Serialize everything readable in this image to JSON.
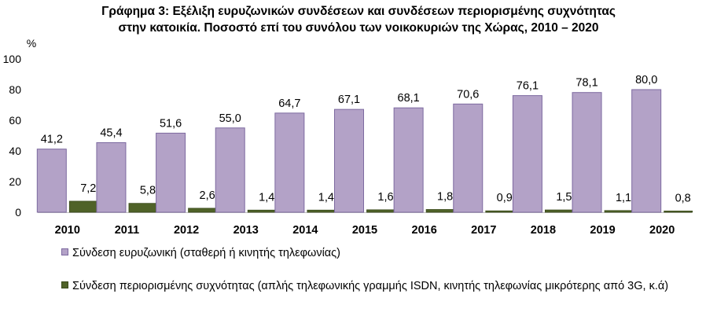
{
  "title_line1": "Γράφημα 3: Εξέλιξη ευρυζωνικών συνδέσεων και συνδέσεων περιορισμένης συχνότητας",
  "title_line2": "στην κατοικία. Ποσοστό επί του συνόλου των νοικοκυριών της Χώρας, 2010 – 2020",
  "legend": {
    "broadband": "Σύνδεση ευρυζωνική (σταθερή ή κινητής τηλεφωνίας)",
    "narrowband": "Σύνδεση περιορισμένης συχνότητας (απλής τηλεφωνικής γραμμής ISDN, κινητής τηλεφωνίας μικρότερης από 3G, κ.ά)"
  },
  "colors": {
    "broadband": "#b3a2c7",
    "broadband_edge": "#7d6aa0",
    "narrowband": "#4f6228",
    "narrowband_edge": "#3a4a1c",
    "axis": "#bfbfbf"
  },
  "chart_data": {
    "type": "bar",
    "categories": [
      "2010",
      "2011",
      "2012",
      "2013",
      "2014",
      "2015",
      "2016",
      "2017",
      "2018",
      "2019",
      "2020"
    ],
    "series": [
      {
        "name": "Σύνδεση ευρυζωνική (σταθερή ή κινητής τηλεφωνίας)",
        "values": [
          41.2,
          45.4,
          51.6,
          55.0,
          64.7,
          67.1,
          68.1,
          70.6,
          76.1,
          78.1,
          80.0
        ],
        "labels": [
          "41,2",
          "45,4",
          "51,6",
          "55,0",
          "64,7",
          "67,1",
          "68,1",
          "70,6",
          "76,1",
          "78,1",
          "80,0"
        ]
      },
      {
        "name": "Σύνδεση περιορισμένης συχνότητας (απλής τηλεφωνικής γραμμής ISDN, κινητής τηλεφωνίας μικρότερης από 3G, κ.ά)",
        "values": [
          7.2,
          5.8,
          2.6,
          1.4,
          1.4,
          1.6,
          1.8,
          0.9,
          1.5,
          1.1,
          0.8
        ],
        "labels": [
          "7,2",
          "5,8",
          "2,6",
          "1,4",
          "1,4",
          "1,6",
          "1,8",
          "0,9",
          "1,5",
          "1,1",
          "0,8"
        ]
      }
    ],
    "yunit": "%",
    "yticks": [
      0,
      20,
      40,
      60,
      80,
      100
    ],
    "ylim": [
      0,
      100
    ],
    "grid": false,
    "legend_position": "bottom-left"
  }
}
